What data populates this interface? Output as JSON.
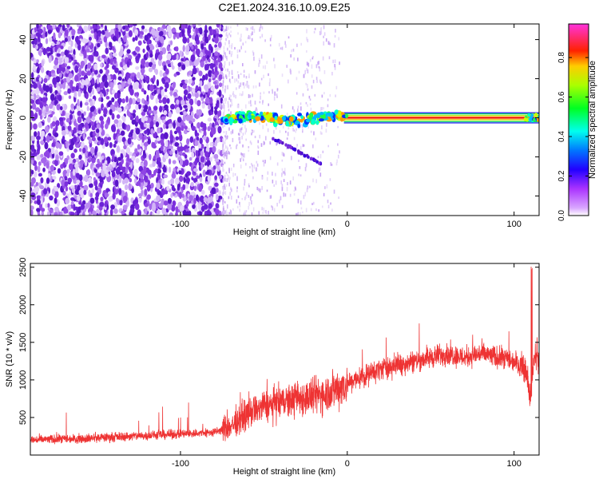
{
  "title": "C2E1.2024.316.10.09.E25",
  "chart_data": [
    {
      "type": "heatmap",
      "xlabel": "Height of straight line (km)",
      "ylabel": "Frequency (Hz)",
      "xlim": [
        -190,
        115
      ],
      "ylim": [
        -50,
        48
      ],
      "xticks": [
        -100,
        0,
        100
      ],
      "yticks": [
        -40,
        -20,
        0,
        20,
        40
      ],
      "colorbar": {
        "label": "Normalized spectral amplitude",
        "range": [
          0,
          0.97
        ],
        "ticks": [
          "0.0",
          "0.2",
          "0.4",
          "0.6",
          "0.8"
        ],
        "colormap": [
          "#ffffff",
          "#cc33ff",
          "#0000ff",
          "#00ffff",
          "#00ff00",
          "#ffff00",
          "#ff0000",
          "#ff33cc"
        ]
      },
      "features": {
        "noise_region_x": [
          -190,
          -75
        ],
        "carrier_line_freq": 0,
        "carrier_line_x": [
          -75,
          115
        ],
        "secondary_trace": {
          "x": [
            -45,
            -15
          ],
          "freq": [
            -10,
            -24
          ]
        }
      }
    },
    {
      "type": "line",
      "xlabel": "Height of straight line (km)",
      "ylabel": "SNR (10 * v/v)",
      "xlim": [
        -190,
        115
      ],
      "ylim": [
        0,
        2550
      ],
      "xticks": [
        -100,
        0,
        100
      ],
      "yticks": [
        500,
        1000,
        1500,
        2000,
        2500
      ],
      "color": "#ee3333",
      "x": [
        -190,
        -160,
        -130,
        -100,
        -80,
        -70,
        -60,
        -50,
        -40,
        -30,
        -20,
        -10,
        0,
        10,
        20,
        30,
        40,
        50,
        60,
        70,
        80,
        90,
        100,
        105,
        108,
        110,
        112,
        115
      ],
      "values": [
        200,
        220,
        250,
        280,
        300,
        380,
        550,
        650,
        700,
        750,
        780,
        850,
        950,
        1050,
        1150,
        1200,
        1250,
        1300,
        1350,
        1300,
        1350,
        1300,
        1250,
        1200,
        1100,
        700,
        1300,
        1300
      ]
    }
  ]
}
